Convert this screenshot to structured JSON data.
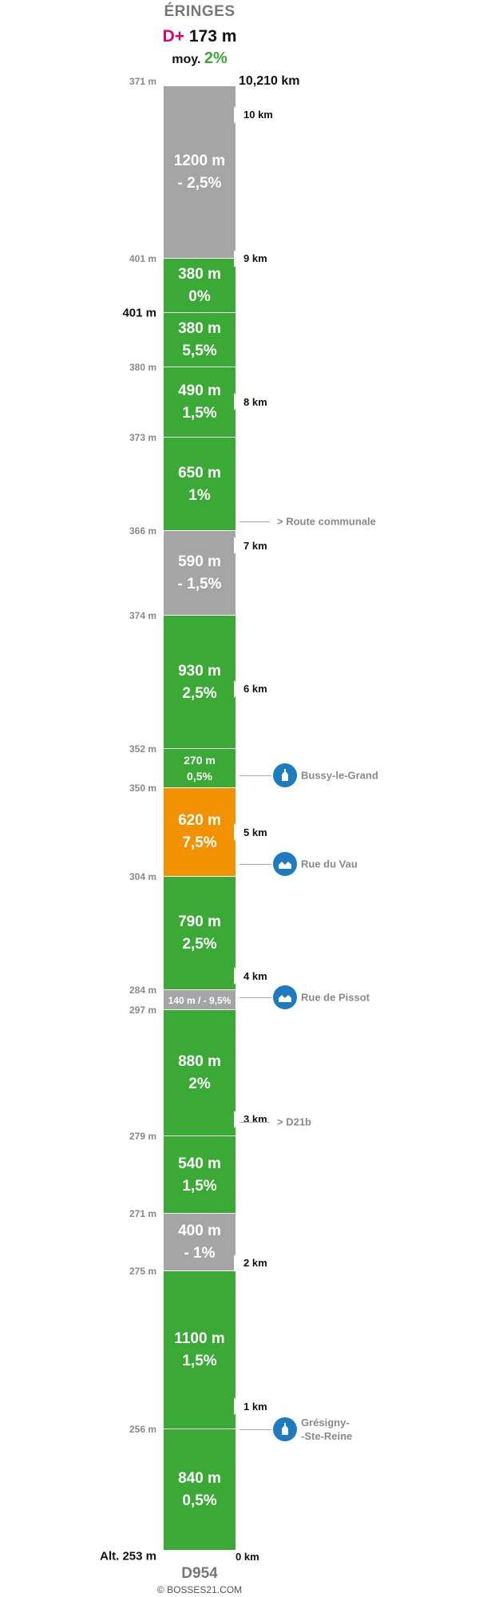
{
  "header": {
    "title": "ÉRINGES",
    "dplus_label": "D+",
    "dplus_value": "173 m",
    "avg_label": "moy.",
    "avg_value": "2%"
  },
  "total_distance": "10,210 km",
  "colors": {
    "green": "#3aa935",
    "grey": "#a5a5a5",
    "orange": "#f39200",
    "marker": "#1f7bbf",
    "dplus": "#e0006f"
  },
  "segments": [
    {
      "length": "1200 m",
      "grade": "- 2,5%",
      "color": "grey",
      "meters": 1200
    },
    {
      "length": "380 m",
      "grade": "0%",
      "color": "green",
      "meters": 380
    },
    {
      "length": "380 m",
      "grade": "5,5%",
      "color": "green",
      "meters": 380
    },
    {
      "length": "490 m",
      "grade": "1,5%",
      "color": "green",
      "meters": 490
    },
    {
      "length": "650 m",
      "grade": "1%",
      "color": "green",
      "meters": 650
    },
    {
      "length": "590 m",
      "grade": "- 1,5%",
      "color": "grey",
      "meters": 590
    },
    {
      "length": "930 m",
      "grade": "2,5%",
      "color": "green",
      "meters": 930
    },
    {
      "length": "270 m",
      "grade": "0,5%",
      "color": "green",
      "meters": 270
    },
    {
      "length": "620 m",
      "grade": "7,5%",
      "color": "orange",
      "meters": 620
    },
    {
      "length": "790 m",
      "grade": "2,5%",
      "color": "green",
      "meters": 790
    },
    {
      "inline": "140 m / - 9,5%",
      "color": "grey",
      "meters": 140
    },
    {
      "length": "880 m",
      "grade": "2%",
      "color": "green",
      "meters": 880
    },
    {
      "length": "540 m",
      "grade": "1,5%",
      "color": "green",
      "meters": 540
    },
    {
      "length": "400 m",
      "grade": "- 1%",
      "color": "grey",
      "meters": 400
    },
    {
      "length": "1100 m",
      "grade": "1,5%",
      "color": "green",
      "meters": 1100
    },
    {
      "length": "840 m",
      "grade": "0,5%",
      "color": "green",
      "meters": 840
    }
  ],
  "altitudes": [
    "371 m",
    "401 m",
    "401 m",
    "380 m",
    "373 m",
    "366 m",
    "374 m",
    "352 m",
    "350 m",
    "304 m",
    "284 m",
    "297 m",
    "279 m",
    "271 m",
    "275 m",
    "256 m",
    "Alt. 253 m"
  ],
  "km_markers": [
    {
      "label": "10 km",
      "km": 10
    },
    {
      "label": "9 km",
      "km": 9
    },
    {
      "label": "8 km",
      "km": 8
    },
    {
      "label": "7 km",
      "km": 7
    },
    {
      "label": "6 km",
      "km": 6
    },
    {
      "label": "5 km",
      "km": 5
    },
    {
      "label": "4 km",
      "km": 4
    },
    {
      "label": "3 km",
      "km": 3
    },
    {
      "label": "2 km",
      "km": 2
    },
    {
      "label": "1 km",
      "km": 1
    },
    {
      "label": "0 km",
      "km": 0
    }
  ],
  "annotations": [
    {
      "text": "> Route communale",
      "km": 7.17,
      "icon": "none"
    },
    {
      "text": "Bussy-le-Grand",
      "km": 5.4,
      "icon": "church-icon"
    },
    {
      "text": "Rue du Vau",
      "km": 4.78,
      "icon": "houses-icon"
    },
    {
      "text": "Rue de Pissot",
      "km": 3.85,
      "icon": "houses-icon"
    },
    {
      "text": "> D21b",
      "km": 2.98,
      "icon": "none"
    },
    {
      "text": "Grésigny-\n-Ste-Reine",
      "km": 0.84,
      "icon": "church-icon"
    }
  ],
  "footer": {
    "road": "D954",
    "credit": "© BOSSES21.COM"
  }
}
